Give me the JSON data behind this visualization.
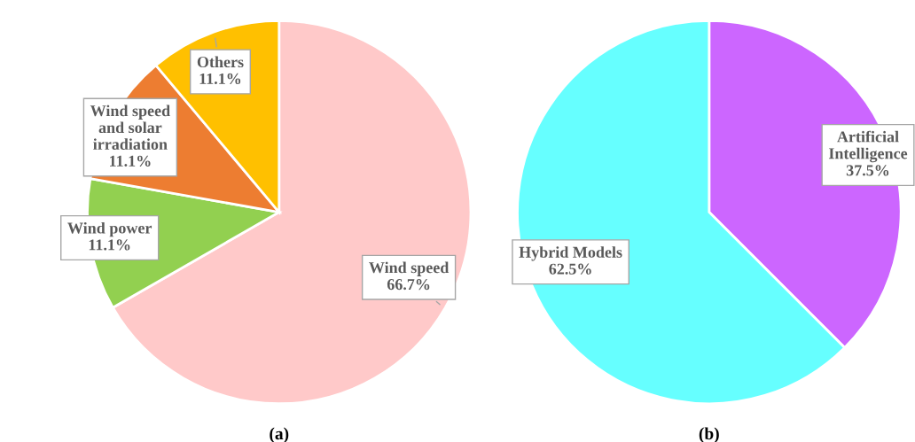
{
  "chart_data": [
    {
      "type": "pie",
      "categories": [
        "Wind speed",
        "Wind power",
        "Wind speed and solar irradiation",
        "Others"
      ],
      "values": [
        66.7,
        11.1,
        11.1,
        11.1
      ],
      "colors": [
        "#ffc9c9",
        "#92d050",
        "#ed7d31",
        "#ffc000"
      ],
      "value_labels": [
        "66.7%",
        "11.1%",
        "11.1%",
        "11.1%"
      ],
      "annotations": [
        "(a)"
      ]
    },
    {
      "type": "pie",
      "categories": [
        "Artificial Intelligence",
        "Hybrid Models"
      ],
      "values": [
        37.5,
        62.5
      ],
      "colors": [
        "#cc66ff",
        "#66ffff"
      ],
      "value_labels": [
        "37.5%",
        "62.5%"
      ],
      "annotations": [
        "(b)"
      ]
    }
  ]
}
